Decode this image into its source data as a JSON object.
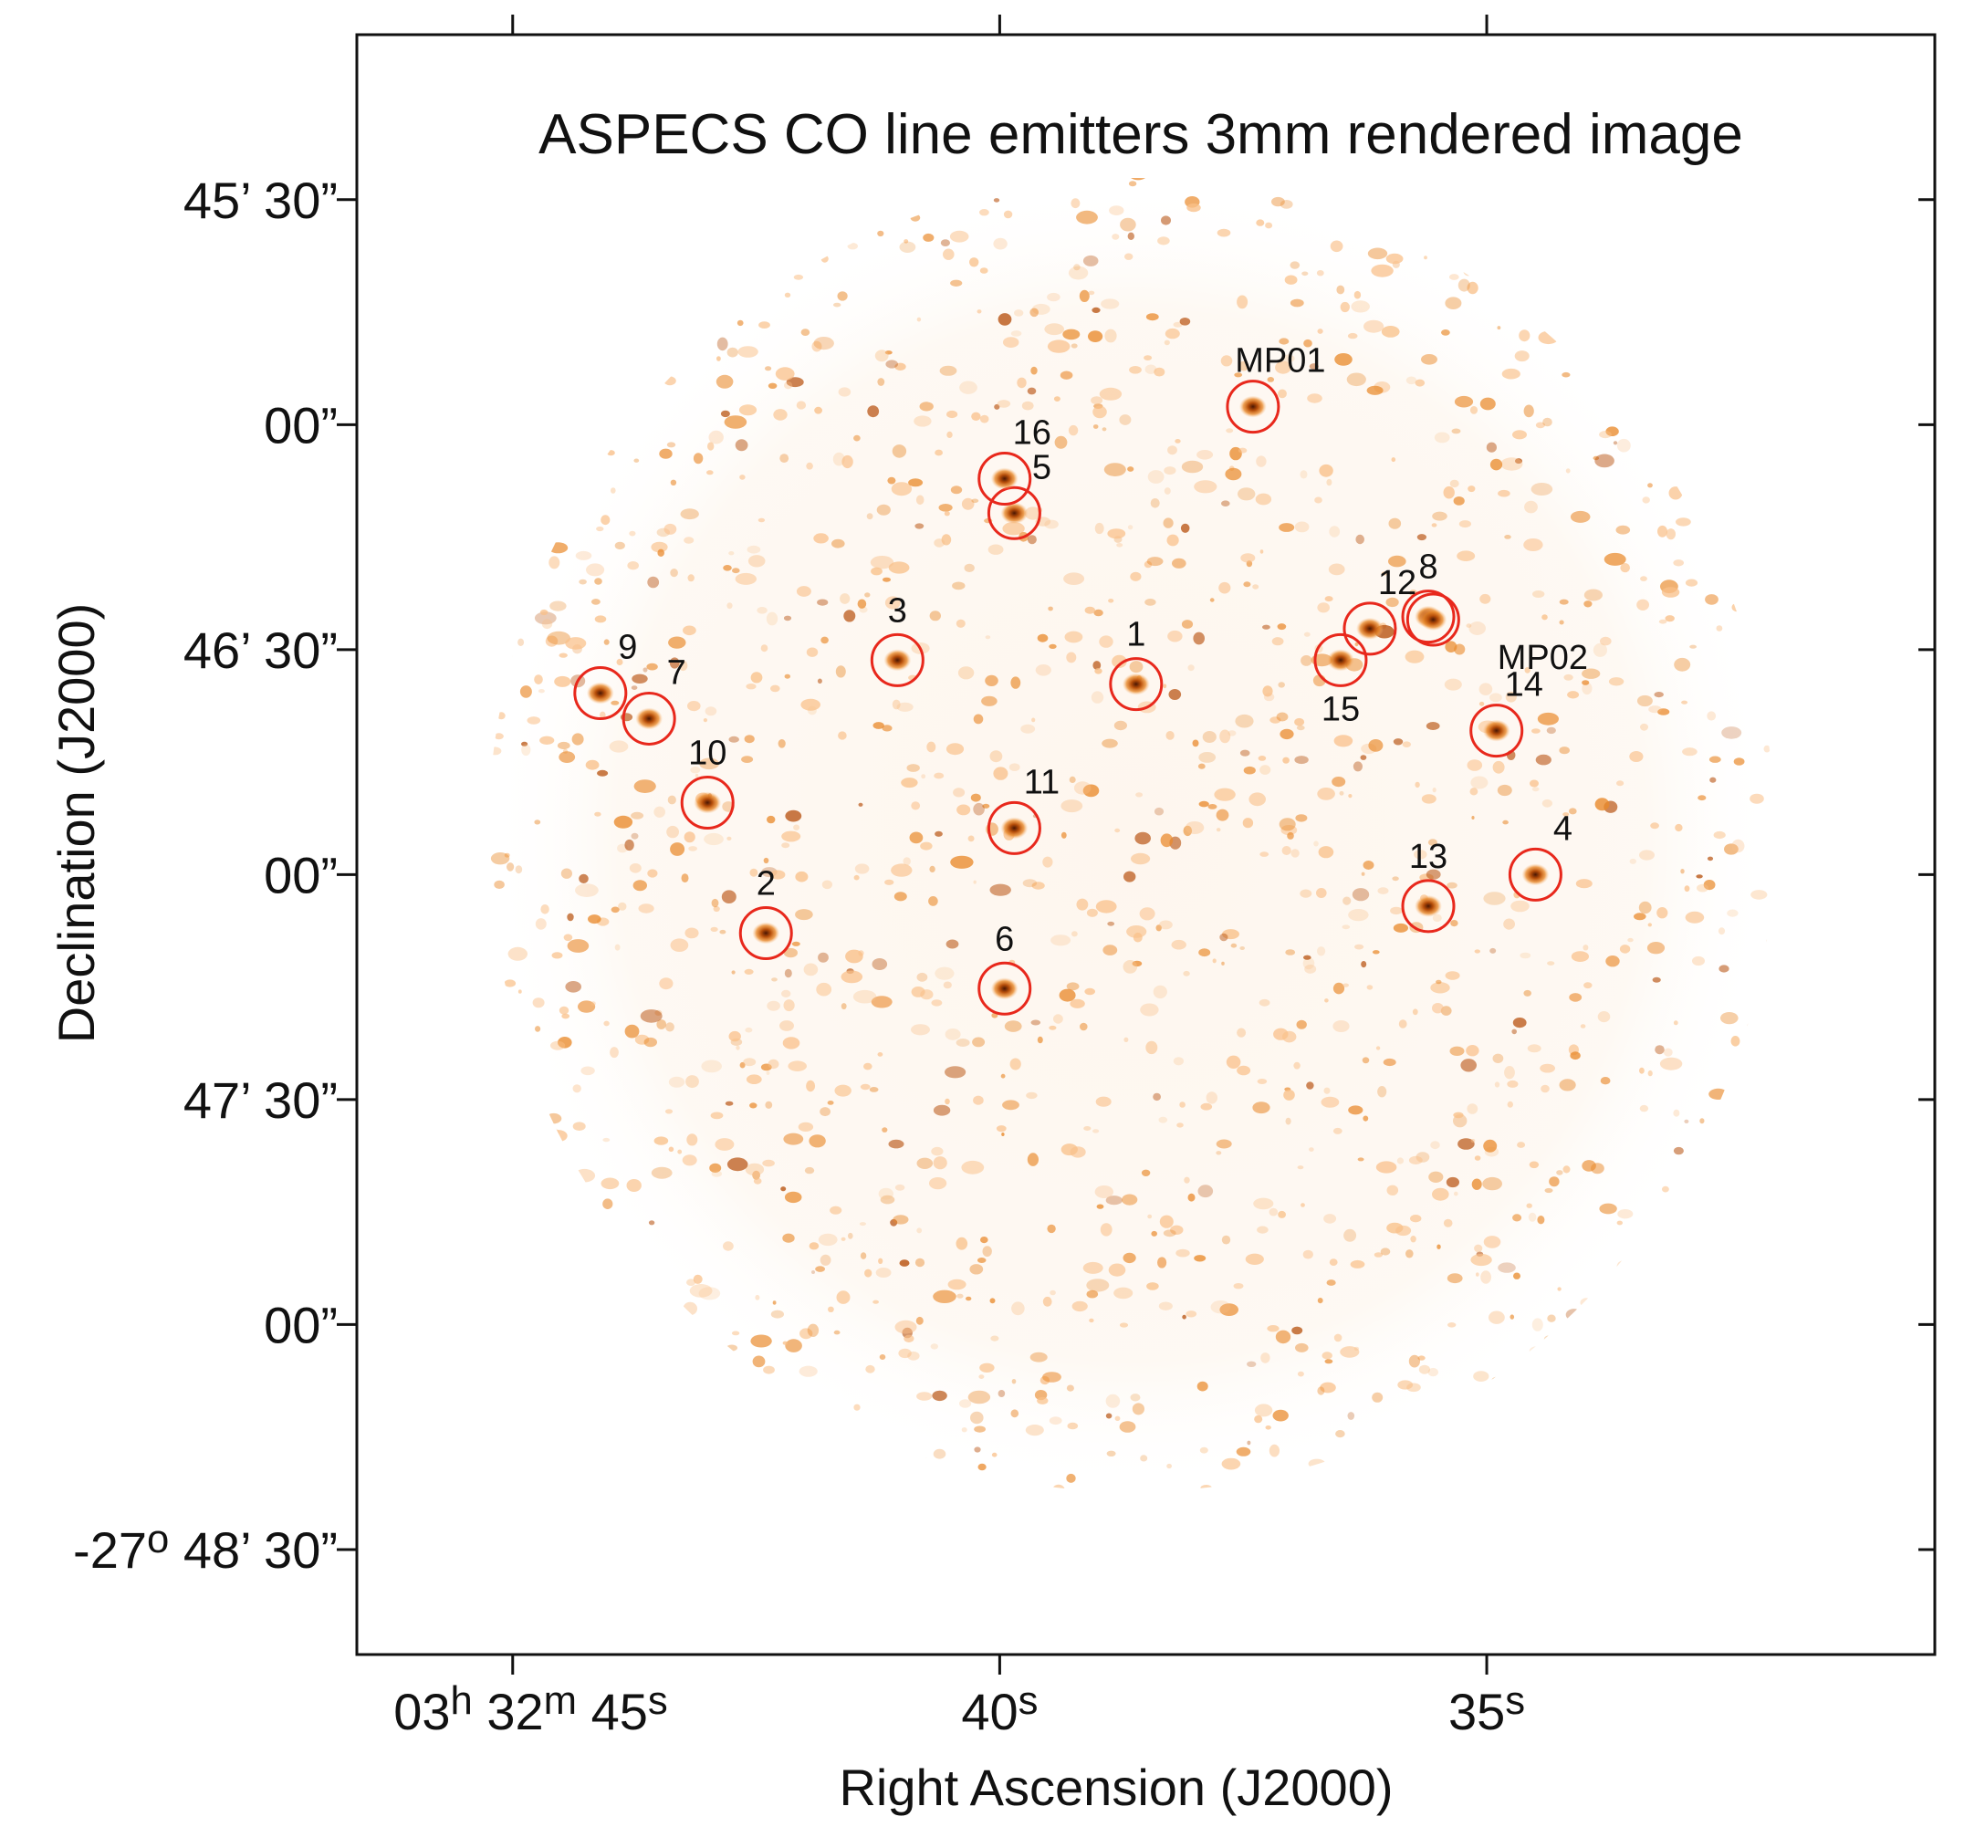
{
  "chart_data": {
    "type": "scatter",
    "title": "ASPECS CO line emitters 3mm rendered image",
    "xlabel": "Right Ascension (J2000)",
    "ylabel": "Declination (J2000)",
    "x_units": "seconds of RA (03h 32m)",
    "y_units": "arcsec south of -27° 45'",
    "x_axis_direction": "reversed",
    "xlim": [
      46.6,
      30.4
    ],
    "ylim": [
      -11,
      97
    ],
    "grid": false,
    "image": {
      "description_colormap": "white-to-orange-to-dark-brown",
      "color_scale": [
        "#ffffff",
        "#f9c089",
        "#e98a2c",
        "#b64e0a",
        "#4a1603"
      ]
    },
    "x_ticks": [
      {
        "value": 45,
        "parts": [
          [
            "03",
            ""
          ],
          [
            "h",
            "sup"
          ],
          [
            " 32",
            ""
          ],
          [
            "m",
            "sup"
          ],
          [
            " 45",
            ""
          ],
          [
            "s",
            "sup"
          ]
        ]
      },
      {
        "value": 40,
        "parts": [
          [
            "40",
            ""
          ],
          [
            "s",
            "sup"
          ]
        ]
      },
      {
        "value": 35,
        "parts": [
          [
            "35",
            ""
          ],
          [
            "s",
            "sup"
          ]
        ]
      }
    ],
    "y_ticks": [
      {
        "value": 0,
        "parts": [
          [
            "45’ 30”",
            ""
          ]
        ]
      },
      {
        "value": 15,
        "parts": [
          [
            "00”",
            ""
          ]
        ]
      },
      {
        "value": 30,
        "parts": [
          [
            "46’ 30”",
            ""
          ]
        ]
      },
      {
        "value": 45,
        "parts": [
          [
            "00”",
            ""
          ]
        ]
      },
      {
        "value": 60,
        "parts": [
          [
            "47’ 30”",
            ""
          ]
        ]
      },
      {
        "value": 75,
        "parts": [
          [
            "00”",
            ""
          ]
        ]
      },
      {
        "value": 90,
        "parts": [
          [
            "-27",
            ""
          ],
          [
            "o",
            "sup"
          ],
          [
            " 48’ 30”",
            ""
          ]
        ]
      }
    ],
    "marker": {
      "shape": "circle",
      "color": "#e8281c"
    },
    "sources": [
      {
        "label": "1",
        "x": 38.6,
        "y": 32.3,
        "label_side": "top"
      },
      {
        "label": "2",
        "x": 42.4,
        "y": 48.9,
        "label_side": "top"
      },
      {
        "label": "3",
        "x": 41.05,
        "y": 30.7,
        "label_side": "top"
      },
      {
        "label": "4",
        "x": 34.5,
        "y": 45.0,
        "label_side": "top-right"
      },
      {
        "label": "5",
        "x": 39.85,
        "y": 20.9,
        "label_side": "top-right"
      },
      {
        "label": "6",
        "x": 39.95,
        "y": 52.6,
        "label_side": "top"
      },
      {
        "label": "7",
        "x": 43.6,
        "y": 34.6,
        "label_side": "top-right"
      },
      {
        "label": "8",
        "x": 35.6,
        "y": 27.8,
        "label_side": "top"
      },
      {
        "label": "9",
        "x": 44.1,
        "y": 32.9,
        "label_side": "top-right"
      },
      {
        "label": "10",
        "x": 43.0,
        "y": 40.2,
        "label_side": "top"
      },
      {
        "label": "11",
        "x": 39.85,
        "y": 41.9,
        "label_side": "top-right"
      },
      {
        "label": "12",
        "x": 36.2,
        "y": 28.6,
        "label_side": "top-right"
      },
      {
        "label": "13",
        "x": 35.6,
        "y": 47.1,
        "label_side": "top"
      },
      {
        "label": "14",
        "x": 34.9,
        "y": 35.4,
        "label_side": "top-right"
      },
      {
        "label": "15",
        "x": 36.5,
        "y": 30.7,
        "label_side": "bottom"
      },
      {
        "label": "16",
        "x": 39.95,
        "y": 18.6,
        "label_side": "top-right"
      },
      {
        "label": "MP01",
        "x": 37.4,
        "y": 13.8,
        "label_side": "top-right"
      },
      {
        "label": "MP02",
        "x": 35.55,
        "y": 28.0,
        "label_side": "bottom-right"
      }
    ]
  }
}
